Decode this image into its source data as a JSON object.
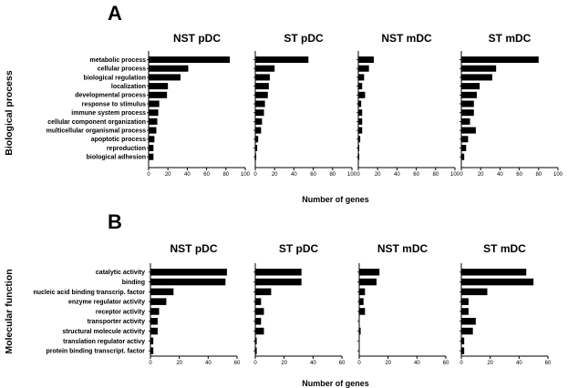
{
  "chart_data": [
    {
      "type": "bar",
      "orientation": "horizontal",
      "panel_label": "A",
      "ylabel": "Biological process",
      "xlabel": "Number of genes",
      "categories": [
        "metabolic process",
        "cellular process",
        "biological regulation",
        "localization",
        "developmental process",
        "response to stimulus",
        "immune system process",
        "cellular component organization",
        "multicellular organismal process",
        "apoptotic process",
        "reproduction",
        "biological adhesion"
      ],
      "xlim": [
        0,
        100
      ],
      "xticks": [
        "0",
        "20",
        "40",
        "60",
        "80",
        "100"
      ],
      "series": [
        {
          "name": "NST pDC",
          "values": [
            84,
            41,
            33,
            20,
            19,
            11,
            10,
            9,
            8,
            6,
            5,
            5
          ]
        },
        {
          "name": "ST pDC",
          "values": [
            55,
            20,
            15,
            14,
            13,
            10,
            9,
            7,
            6,
            3,
            2,
            1
          ]
        },
        {
          "name": "NST mDC",
          "values": [
            16,
            11,
            6,
            4,
            7,
            3,
            4,
            4,
            4,
            2,
            1,
            1
          ]
        },
        {
          "name": "ST mDC",
          "values": [
            80,
            36,
            32,
            19,
            16,
            13,
            13,
            9,
            15,
            7,
            5,
            3
          ]
        }
      ]
    },
    {
      "type": "bar",
      "orientation": "horizontal",
      "panel_label": "B",
      "ylabel": "Molecular function",
      "xlabel": "Number of genes",
      "categories": [
        "catalytic activity",
        "binding",
        "nucleic acid binding transcrip. factor",
        "enzyme regulator activity",
        "receptor activity",
        "transporter activity",
        "structural molecule activity",
        "translation regulator activy",
        "protein binding transcript. factor"
      ],
      "xlim": [
        0,
        60
      ],
      "xticks": [
        "0",
        "20",
        "40",
        "60"
      ],
      "series": [
        {
          "name": "NST pDC",
          "values": [
            53,
            52,
            16,
            11,
            6,
            5,
            5,
            2,
            2
          ]
        },
        {
          "name": "ST pDC",
          "values": [
            32,
            32,
            11,
            4,
            6,
            4,
            6,
            1,
            1
          ]
        },
        {
          "name": "NST mDC",
          "values": [
            14,
            12,
            4,
            3,
            4,
            0,
            1,
            0,
            0
          ]
        },
        {
          "name": "ST mDC",
          "values": [
            45,
            50,
            18,
            5,
            5,
            10,
            8,
            2,
            2
          ]
        }
      ]
    }
  ]
}
